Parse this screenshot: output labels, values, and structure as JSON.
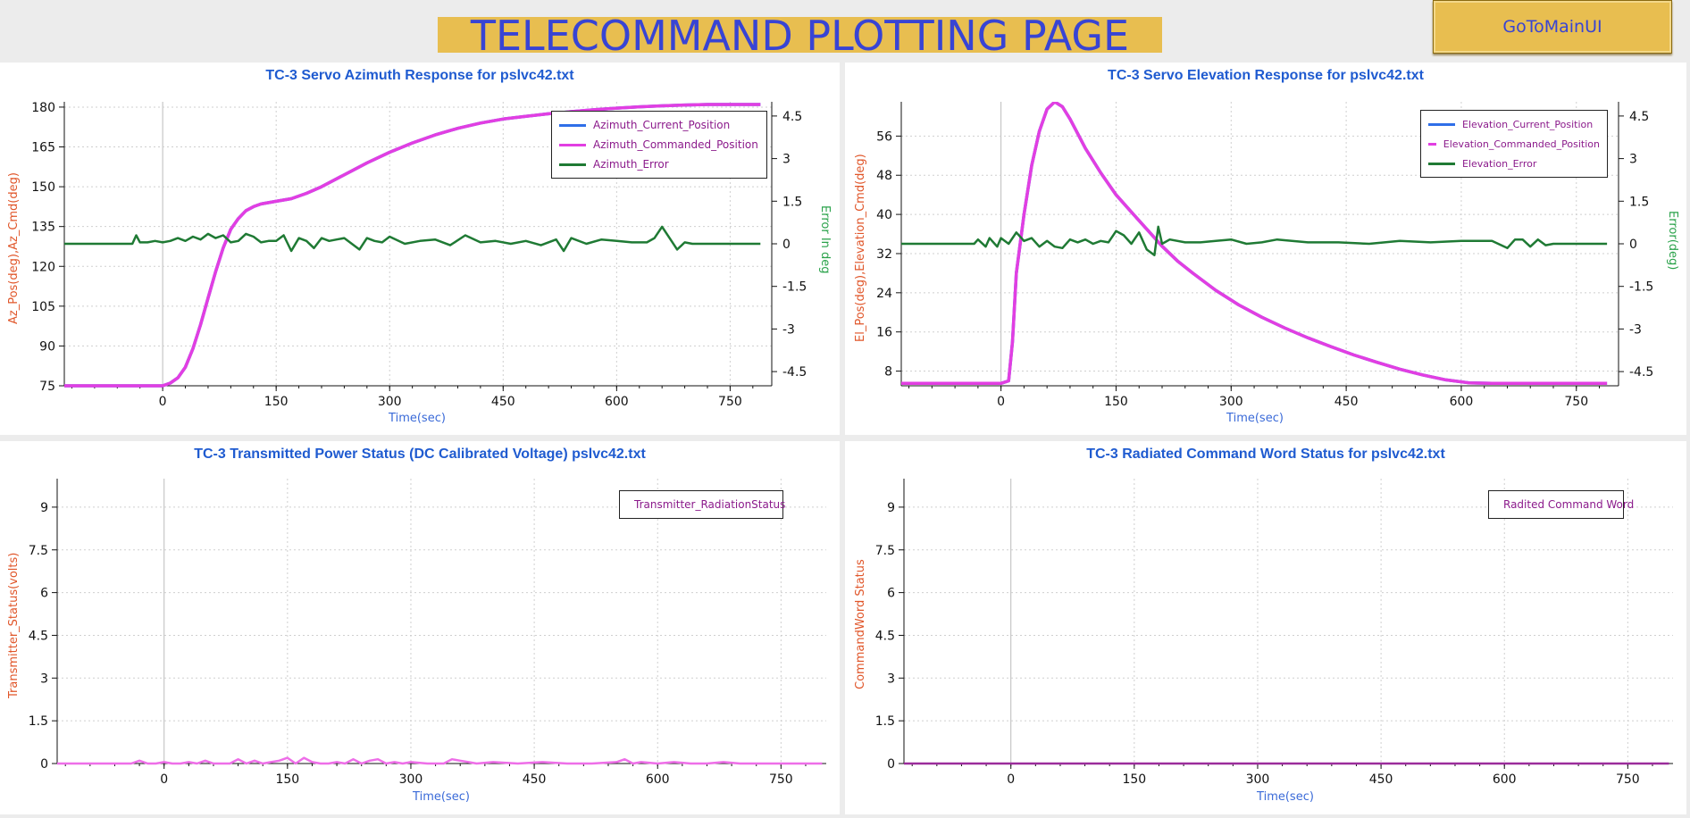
{
  "header": {
    "title": "TELECOMMAND PLOTTING PAGE",
    "main_button": "GoToMainUI"
  },
  "colors": {
    "title_bg": "#e8be50",
    "title_text": "#3844d4",
    "current": "#2f6fe8",
    "commanded": "#e23ee2",
    "error": "#1f7a34",
    "transmitter": "#ee6ee8",
    "command_word": "#9b2c9b"
  },
  "chart_data": [
    {
      "type": "line",
      "title": "TC-3 Servo Azimuth Response for pslvc42.txt",
      "xlabel": "Time(sec)",
      "ylabel": "Az_Pos(deg),Az_Cmd(deg)",
      "y2label": "Error In deg",
      "xlim": [
        -130,
        805
      ],
      "ylim": [
        75,
        182
      ],
      "y2lim": [
        -5,
        5
      ],
      "xticks": [
        0,
        150,
        300,
        450,
        600,
        750
      ],
      "yticks": [
        75,
        90,
        105,
        120,
        135,
        150,
        165,
        180
      ],
      "y2ticks": [
        -4.5,
        -3,
        -1.5,
        0,
        1.5,
        3,
        4.5
      ],
      "grid": true,
      "legend_position": "top-right",
      "series": [
        {
          "name": "Azimuth_Current_Position",
          "axis": "left",
          "x": [
            -130,
            0,
            10,
            20,
            30,
            40,
            50,
            60,
            70,
            80,
            90,
            100,
            110,
            120,
            130,
            150,
            170,
            190,
            210,
            230,
            250,
            270,
            300,
            330,
            360,
            390,
            420,
            450,
            480,
            510,
            540,
            570,
            600,
            630,
            660,
            690,
            720,
            750,
            790
          ],
          "values": [
            75,
            75,
            76,
            78,
            82,
            89,
            98,
            108,
            118,
            127,
            134,
            138,
            141,
            142.5,
            143.5,
            144.5,
            145.5,
            147.5,
            150,
            153,
            156,
            159,
            163,
            166.5,
            169.5,
            172,
            174,
            175.5,
            176.5,
            177.5,
            178.3,
            179,
            179.6,
            180.1,
            180.5,
            180.8,
            181,
            181,
            181
          ]
        },
        {
          "name": "Azimuth_Commanded_Position",
          "axis": "left",
          "x": [
            -130,
            0,
            10,
            20,
            30,
            40,
            50,
            60,
            70,
            80,
            90,
            100,
            110,
            120,
            130,
            150,
            170,
            190,
            210,
            230,
            250,
            270,
            300,
            330,
            360,
            390,
            420,
            450,
            480,
            510,
            540,
            570,
            600,
            630,
            660,
            690,
            720,
            750,
            790
          ],
          "values": [
            75,
            75,
            76,
            78,
            82,
            89,
            98,
            108,
            118,
            127,
            134,
            138,
            141,
            142.5,
            143.5,
            144.5,
            145.5,
            147.5,
            150,
            153,
            156,
            159,
            163,
            166.5,
            169.5,
            172,
            174,
            175.5,
            176.5,
            177.5,
            178.3,
            179,
            179.6,
            180.1,
            180.5,
            180.8,
            181,
            181,
            181
          ]
        },
        {
          "name": "Azimuth_Error",
          "axis": "right",
          "x": [
            -130,
            -40,
            -35,
            -30,
            -20,
            -10,
            0,
            10,
            20,
            30,
            40,
            50,
            60,
            70,
            80,
            90,
            100,
            110,
            120,
            130,
            140,
            150,
            160,
            170,
            180,
            190,
            200,
            210,
            220,
            230,
            240,
            260,
            270,
            280,
            290,
            300,
            320,
            340,
            360,
            380,
            400,
            420,
            440,
            460,
            480,
            500,
            520,
            530,
            540,
            560,
            580,
            600,
            620,
            640,
            650,
            660,
            670,
            680,
            690,
            700,
            720,
            760,
            790
          ],
          "values": [
            0,
            0,
            0.3,
            0.05,
            0.05,
            0.1,
            0.05,
            0.1,
            0.2,
            0.1,
            0.25,
            0.15,
            0.35,
            0.2,
            0.3,
            0.05,
            0.1,
            0.35,
            0.25,
            0.05,
            0.1,
            0.1,
            0.3,
            -0.25,
            0.2,
            0.1,
            -0.15,
            0.2,
            0.1,
            0.15,
            0.2,
            -0.2,
            0.2,
            0.1,
            0.05,
            0.25,
            0.0,
            0.1,
            0.15,
            -0.05,
            0.3,
            0.05,
            0.1,
            0.0,
            0.1,
            -0.05,
            0.15,
            -0.25,
            0.2,
            0.0,
            0.15,
            0.1,
            0.05,
            0.05,
            0.2,
            0.6,
            0.2,
            -0.2,
            0.05,
            0.0,
            0.0,
            0.0,
            0.0
          ]
        }
      ]
    },
    {
      "type": "line",
      "title": "TC-3 Servo Elevation Response for pslvc42.txt",
      "xlabel": "Time(sec)",
      "ylabel": "El_Pos(deg),Elevation_Cmd(deg)",
      "y2label": "Error(deg)",
      "xlim": [
        -130,
        805
      ],
      "ylim": [
        5,
        63
      ],
      "y2lim": [
        -5,
        5
      ],
      "xticks": [
        0,
        150,
        300,
        450,
        600,
        750
      ],
      "yticks": [
        8,
        16,
        24,
        32,
        40,
        48,
        56
      ],
      "y2ticks": [
        -4.5,
        -3,
        -1.5,
        0,
        1.5,
        3,
        4.5
      ],
      "grid": true,
      "legend_position": "top-right",
      "series": [
        {
          "name": "Elevation_Current_Position",
          "axis": "left",
          "x": [
            -130,
            0,
            10,
            15,
            20,
            30,
            40,
            50,
            60,
            70,
            80,
            90,
            100,
            110,
            130,
            150,
            170,
            190,
            210,
            230,
            250,
            280,
            310,
            340,
            370,
            400,
            430,
            460,
            490,
            520,
            550,
            580,
            610,
            640,
            670,
            700,
            760,
            790
          ],
          "values": [
            5.5,
            5.5,
            6,
            14,
            28,
            40,
            50,
            57,
            61.5,
            63,
            62,
            59.5,
            56.5,
            53.5,
            48.5,
            44,
            40.5,
            37,
            33.5,
            30.5,
            28,
            24.5,
            21.5,
            19,
            16.8,
            14.8,
            13,
            11.3,
            9.8,
            8.4,
            7.2,
            6.2,
            5.6,
            5.5,
            5.5,
            5.5,
            5.5,
            5.5
          ]
        },
        {
          "name": "Elevation_Commanded_Position",
          "axis": "left",
          "x": [
            -130,
            0,
            10,
            15,
            20,
            30,
            40,
            50,
            60,
            70,
            80,
            90,
            100,
            110,
            130,
            150,
            170,
            190,
            210,
            230,
            250,
            280,
            310,
            340,
            370,
            400,
            430,
            460,
            490,
            520,
            550,
            580,
            610,
            640,
            670,
            700,
            760,
            790
          ],
          "values": [
            5.5,
            5.5,
            6,
            14,
            28,
            40,
            50,
            57,
            61.5,
            63,
            62,
            59.5,
            56.5,
            53.5,
            48.5,
            44,
            40.5,
            37,
            33.5,
            30.5,
            28,
            24.5,
            21.5,
            19,
            16.8,
            14.8,
            13,
            11.3,
            9.8,
            8.4,
            7.2,
            6.2,
            5.6,
            5.5,
            5.5,
            5.5,
            5.5,
            5.5
          ]
        },
        {
          "name": "Elevation_Error",
          "axis": "right",
          "x": [
            -130,
            -35,
            -30,
            -20,
            -15,
            -5,
            0,
            10,
            20,
            30,
            40,
            50,
            60,
            70,
            80,
            90,
            100,
            110,
            120,
            130,
            140,
            150,
            160,
            170,
            180,
            190,
            200,
            205,
            210,
            220,
            240,
            260,
            280,
            300,
            320,
            340,
            360,
            400,
            440,
            480,
            520,
            560,
            600,
            620,
            640,
            660,
            670,
            680,
            690,
            700,
            710,
            720,
            760,
            790
          ],
          "values": [
            0,
            0,
            0.15,
            -0.1,
            0.2,
            -0.1,
            0.2,
            0.0,
            0.4,
            0.1,
            0.2,
            -0.1,
            0.1,
            -0.1,
            -0.15,
            0.15,
            0.05,
            0.15,
            0.0,
            0.1,
            0.05,
            0.45,
            0.3,
            0.0,
            0.4,
            -0.2,
            -0.4,
            0.6,
            0.0,
            0.15,
            0.05,
            0.05,
            0.1,
            0.15,
            0.0,
            0.05,
            0.15,
            0.05,
            0.05,
            0.0,
            0.1,
            0.05,
            0.1,
            0.1,
            0.1,
            -0.15,
            0.15,
            0.15,
            -0.1,
            0.15,
            -0.05,
            0.0,
            0.0,
            0.0
          ]
        }
      ]
    },
    {
      "type": "line",
      "title": "TC-3 Transmitted Power Status (DC Calibrated Voltage) pslvc42.txt",
      "xlabel": "Time(sec)",
      "ylabel": "Transmitter_Status(volts)",
      "xlim": [
        -130,
        805
      ],
      "ylim": [
        0,
        10
      ],
      "xticks": [
        0,
        150,
        300,
        450,
        600,
        750
      ],
      "yticks": [
        0,
        1.5,
        3,
        4.5,
        6,
        7.5,
        9
      ],
      "grid": true,
      "legend_position": "top-right",
      "series": [
        {
          "name": "Transmitter_RadiationStatus",
          "x": [
            -130,
            -40,
            -30,
            -20,
            -10,
            0,
            10,
            20,
            30,
            40,
            50,
            60,
            70,
            80,
            90,
            100,
            110,
            120,
            130,
            140,
            150,
            160,
            170,
            180,
            190,
            200,
            210,
            220,
            230,
            240,
            250,
            260,
            270,
            280,
            290,
            300,
            320,
            340,
            350,
            360,
            370,
            380,
            400,
            430,
            460,
            490,
            520,
            550,
            560,
            570,
            580,
            600,
            620,
            640,
            660,
            680,
            700,
            720,
            760,
            800
          ],
          "values": [
            0,
            0,
            0.1,
            0.0,
            0.0,
            0.05,
            0.0,
            0.0,
            0.05,
            0.0,
            0.1,
            0.0,
            0.0,
            0.0,
            0.15,
            0.0,
            0.1,
            0.0,
            0.05,
            0.1,
            0.2,
            0.0,
            0.2,
            0.05,
            0.0,
            0.0,
            0.05,
            0.0,
            0.15,
            0.0,
            0.1,
            0.15,
            0.0,
            0.05,
            0.0,
            0.05,
            0.0,
            0.0,
            0.15,
            0.1,
            0.05,
            0.0,
            0.05,
            0.0,
            0.05,
            0.0,
            0.0,
            0.05,
            0.15,
            0.0,
            0.05,
            0.0,
            0.05,
            0.0,
            0.0,
            0.05,
            0.0,
            0.0,
            0.0,
            0.0
          ]
        }
      ]
    },
    {
      "type": "line",
      "title": "TC-3 Radiated Command Word Status for pslvc42.txt",
      "xlabel": "Time(sec)",
      "ylabel": "CommandWord Status",
      "xlim": [
        -130,
        805
      ],
      "ylim": [
        0,
        10
      ],
      "xticks": [
        0,
        150,
        300,
        450,
        600,
        750
      ],
      "yticks": [
        0,
        1.5,
        3,
        4.5,
        6,
        7.5,
        9
      ],
      "grid": true,
      "legend_position": "top-right",
      "series": [
        {
          "name": "Radited Command Word",
          "x": [
            -130,
            800
          ],
          "values": [
            0,
            0
          ]
        }
      ]
    }
  ]
}
